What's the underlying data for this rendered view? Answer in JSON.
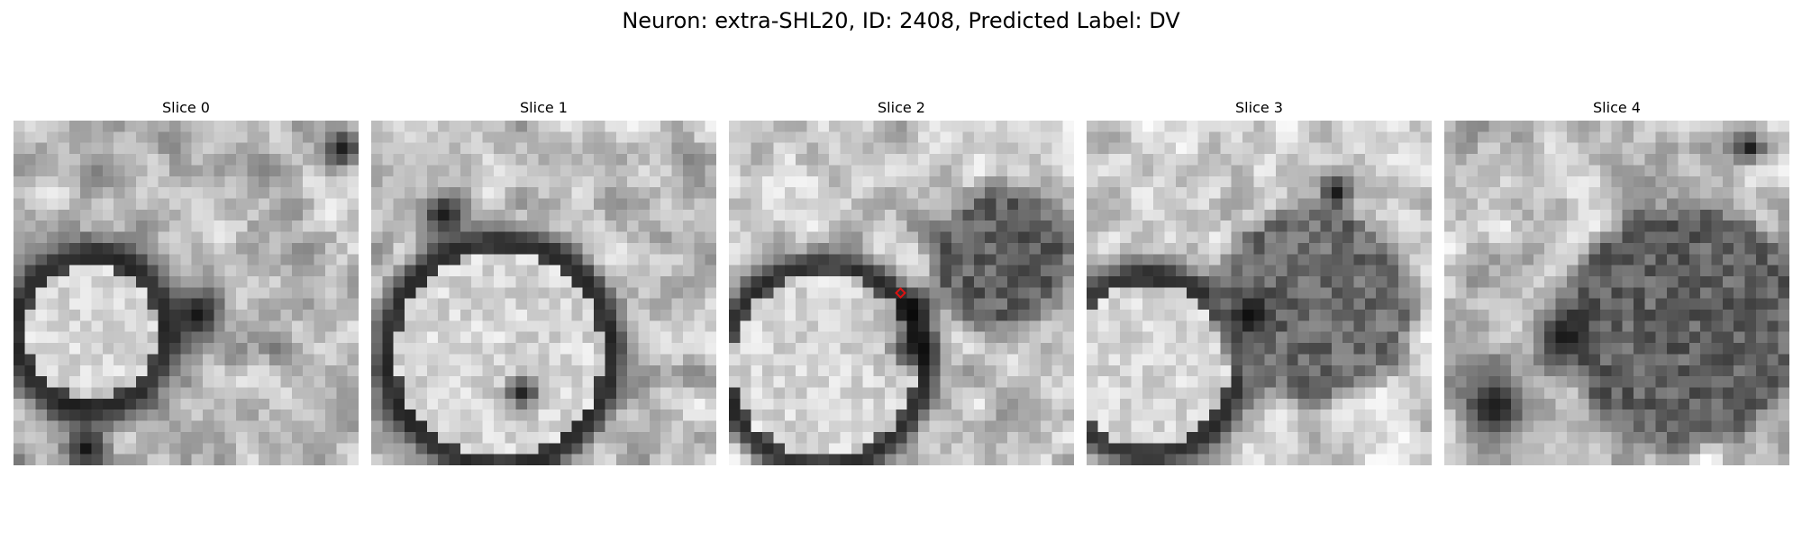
{
  "figure": {
    "title": "Neuron: extra-SHL20, ID: 2408, Predicted Label: DV"
  },
  "panels": [
    {
      "title": "Slice 0"
    },
    {
      "title": "Slice 1"
    },
    {
      "title": "Slice 2"
    },
    {
      "title": "Slice 3"
    },
    {
      "title": "Slice 4"
    }
  ],
  "image_style": {
    "colormap": "grayscale",
    "marker_color": "#dd1111",
    "marker_shape": "diamond",
    "marker_slice": "Slice 2"
  }
}
